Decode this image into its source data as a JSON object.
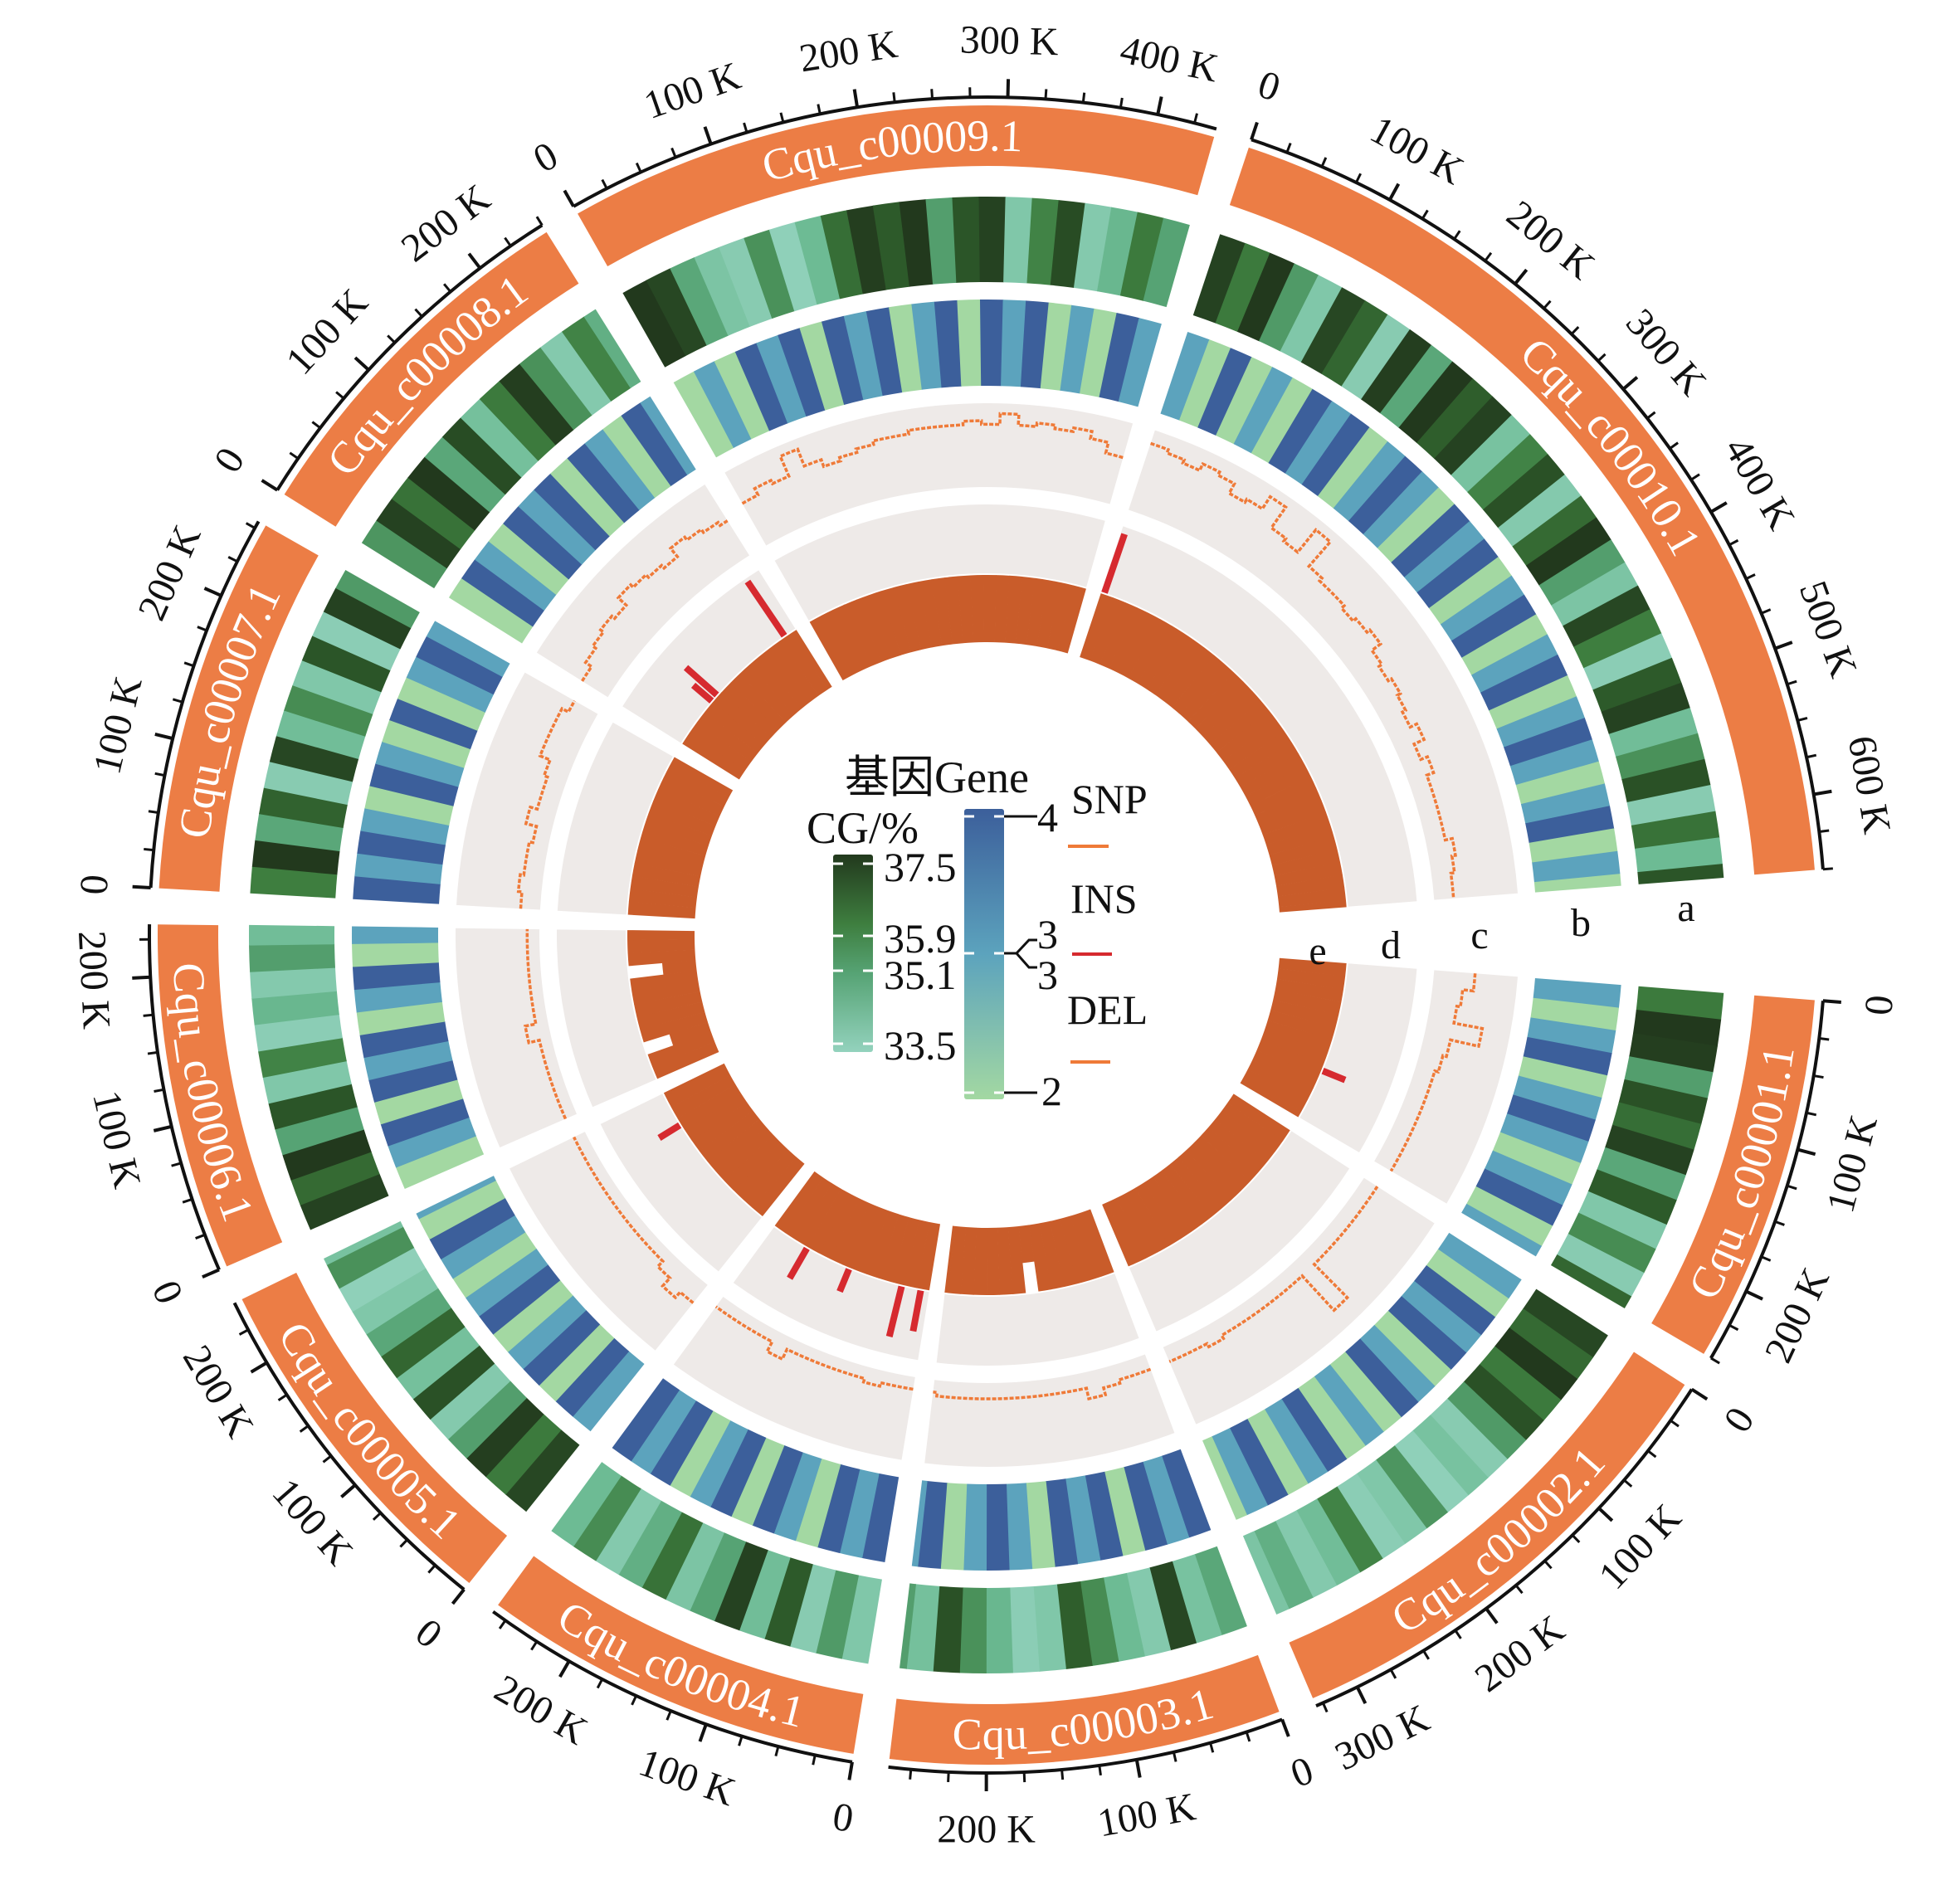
{
  "chart_data": {
    "type": "circos",
    "title": "",
    "units": "K",
    "bin_size_k": 20,
    "track_labels": [
      "a",
      "b",
      "c",
      "d",
      "e"
    ],
    "tracks": {
      "a": "GC content (CG/%) heatmap",
      "b": "Gene density heatmap",
      "c": "SNP",
      "d": "INS",
      "e": "DEL"
    },
    "contigs": [
      {
        "name": "Cqu_c00001.1",
        "length_k": 250,
        "tick_labels": [
          "0",
          "100 K",
          "200 K"
        ],
        "gc": [
          36.0,
          37.5,
          37.4,
          35.2,
          37.0,
          36.3,
          37.3,
          35.0,
          36.8,
          34.0,
          35.6,
          33.8,
          36.5
        ],
        "gene": [
          3,
          2,
          3,
          4,
          2,
          3,
          4,
          3,
          2,
          3,
          4,
          2,
          3
        ],
        "snp": [
          0.5,
          0.35,
          0.3,
          0.7,
          0.3,
          0.25,
          0.2,
          0.2,
          0.2,
          0.2,
          0.2,
          0.2,
          0.2
        ],
        "ins": [
          [
            170,
            0.35
          ]
        ],
        "del": [
          1,
          1,
          1,
          1,
          1,
          1,
          1,
          1,
          1,
          1,
          1,
          1,
          1
        ]
      },
      {
        "name": "Cqu_c00002.1",
        "length_k": 330,
        "tick_labels": [
          "0",
          "100 K",
          "200 K",
          "300 K"
        ],
        "gc": [
          37.2,
          36.4,
          37.5,
          36.0,
          37.0,
          35.3,
          33.8,
          34.2,
          33.6,
          35.4,
          34.0,
          33.7,
          35.8,
          34.4,
          33.9,
          34.8,
          34.1
        ],
        "gene": [
          3,
          2,
          4,
          3,
          4,
          2,
          3,
          4,
          2,
          3,
          2,
          4,
          3,
          2,
          4,
          3,
          2
        ],
        "snp": [
          0.15,
          0.15,
          0.15,
          0.15,
          0.15,
          0.15,
          0.8,
          0.15,
          0.15,
          0.15,
          0.15,
          0.15,
          0.15,
          0.2,
          0.15,
          0.15,
          0.15
        ],
        "ins": [],
        "del": [
          1,
          1,
          1,
          1,
          1,
          1,
          1,
          1,
          1,
          1,
          1,
          1,
          1,
          1,
          1,
          1,
          1
        ]
      },
      {
        "name": "Cqu_c00003.1",
        "length_k": 265,
        "tick_labels": [
          "0",
          "100 K",
          "200 K"
        ],
        "gc": [
          35.0,
          34.2,
          37.2,
          33.9,
          34.5,
          35.6,
          36.7,
          34.0,
          33.7,
          34.6,
          35.5,
          37.0,
          34.3,
          35.2
        ],
        "gene": [
          4,
          3,
          4,
          2,
          4,
          3,
          4,
          2,
          3,
          4,
          3,
          2,
          4,
          3
        ],
        "snp": [
          0.15,
          0.15,
          0.2,
          0.3,
          0.15,
          0.15,
          0.15,
          0.15,
          0.15,
          0.15,
          0.15,
          0.15,
          0.15,
          0.1
        ],
        "ins": [],
        "del": [
          1,
          1,
          1,
          1,
          1,
          1,
          0.55,
          1,
          1,
          1,
          1,
          1,
          1,
          1
        ]
      },
      {
        "name": "Cqu_c00004.1",
        "length_k": 260,
        "tick_labels": [
          "0",
          "100 K",
          "200 K"
        ],
        "gc": [
          34.0,
          35.3,
          33.8,
          36.8,
          34.4,
          37.3,
          35.1,
          34.1,
          36.2,
          34.8,
          33.9,
          35.6,
          34.5
        ],
        "gene": [
          4,
          3,
          4,
          2,
          3,
          4,
          2,
          4,
          3,
          2,
          4,
          3,
          4
        ],
        "snp": [
          0.1,
          0.1,
          0.15,
          0.1,
          0.1,
          0.1,
          0.1,
          0.1,
          0.25,
          0.1,
          0.1,
          0.1,
          0.1
        ],
        "ins": [
          [
            13,
            0.6
          ],
          [
            43,
            0.75
          ],
          [
            128,
            0.35
          ],
          [
            200,
            0.5
          ]
        ],
        "del": [
          1,
          1,
          1,
          1,
          1,
          1,
          1,
          1,
          1,
          1,
          1,
          1,
          1
        ]
      },
      {
        "name": "Cqu_c00005.1",
        "length_k": 245,
        "tick_labels": [
          "0",
          "100 K",
          "200 K"
        ],
        "gc": [
          37.2,
          36.0,
          37.4,
          35.2,
          33.9,
          37.0,
          34.3,
          36.5,
          35.0,
          34.0,
          33.6,
          35.5,
          34.2
        ],
        "gene": [
          3,
          4,
          2,
          4,
          3,
          2,
          4,
          3,
          2,
          3,
          4,
          2,
          3
        ],
        "snp": [
          0.25,
          0.35,
          0.2,
          0.1,
          0.1,
          0.1,
          0.1,
          0.1,
          0.1,
          0.1,
          0.1,
          0.1,
          0.1
        ],
        "ins": [
          [
            190,
            0.35
          ]
        ],
        "del": [
          1,
          1,
          1,
          1,
          1,
          1,
          1,
          1,
          1,
          1,
          1,
          1,
          1
        ]
      },
      {
        "name": "Cqu_c00006.1",
        "length_k": 235,
        "tick_labels": [
          "0",
          "100 K",
          "200 K"
        ],
        "gc": [
          37.3,
          36.4,
          37.5,
          35.1,
          36.9,
          34.0,
          35.8,
          33.7,
          34.6,
          33.9,
          35.2,
          34.4
        ],
        "gene": [
          2,
          3,
          4,
          2,
          4,
          3,
          4,
          2,
          3,
          4,
          2,
          3
        ],
        "snp": [
          0.1,
          0.1,
          0.1,
          0.1,
          0.1,
          0.25,
          0.1,
          0.1,
          0.1,
          0.1,
          0.1,
          0.1
        ],
        "ins": [],
        "del": [
          1,
          1,
          0.6,
          1,
          1,
          1,
          1,
          1,
          0.5,
          1,
          1,
          1
        ]
      },
      {
        "name": "Cqu_c00007.1",
        "length_k": 255,
        "tick_labels": [
          "0",
          "100 K",
          "200 K"
        ],
        "gc": [
          35.9,
          37.5,
          35.0,
          36.6,
          33.8,
          37.2,
          34.4,
          35.6,
          34.0,
          36.9,
          33.7,
          37.3,
          35.3
        ],
        "gene": [
          4,
          3,
          4,
          3,
          2,
          4,
          3,
          2,
          4,
          2,
          3,
          4,
          3
        ],
        "snp": [
          0.2,
          0.25,
          0.2,
          0.2,
          0.15,
          0.3,
          0.2,
          0.2,
          0.25,
          0.4,
          0.4,
          0.4,
          0.3
        ],
        "ins": [],
        "del": [
          1,
          1,
          1,
          1,
          1,
          1,
          1,
          1,
          1,
          1,
          1,
          1,
          1
        ]
      },
      {
        "name": "Cqu_c00008.1",
        "length_k": 250,
        "tick_labels": [
          "0",
          "100 K",
          "200 K"
        ],
        "gc": [
          35.4,
          37.3,
          36.2,
          37.5,
          35.0,
          37.1,
          34.3,
          36.0,
          37.4,
          35.5,
          33.9,
          35.8,
          34.8
        ],
        "gene": [
          2,
          4,
          3,
          2,
          4,
          3,
          4,
          2,
          4,
          3,
          2,
          4,
          3
        ],
        "snp": [
          0.35,
          0.45,
          0.5,
          0.55,
          0.5,
          0.65,
          0.6,
          0.55,
          0.5,
          0.65,
          0.6,
          0.55,
          0.5
        ],
        "ins": [
          [
            80,
            0.35
          ],
          [
            92,
            0.6
          ],
          [
            230,
            0.95
          ]
        ],
        "del": [
          1,
          1,
          1,
          1,
          1,
          1,
          1,
          1,
          1,
          1,
          1,
          1,
          1
        ]
      },
      {
        "name": "Cqu_c00009.1",
        "length_k": 440,
        "tick_labels": [
          "0",
          "100 K",
          "200 K",
          "300 K",
          "400 K"
        ],
        "gc": [
          37.5,
          37.2,
          35.0,
          34.1,
          33.8,
          35.5,
          33.6,
          34.5,
          36.3,
          37.4,
          36.8,
          37.5,
          35.2,
          36.9,
          37.3,
          34.0,
          35.8,
          37.1,
          33.9,
          34.6,
          36.0,
          35.1
        ],
        "gene": [
          2,
          3,
          2,
          4,
          3,
          4,
          2,
          4,
          3,
          4,
          2,
          3,
          4,
          2,
          4,
          3,
          4,
          2,
          3,
          2,
          4,
          3
        ],
        "snp": [
          0.6,
          0.7,
          0.65,
          0.95,
          0.7,
          0.6,
          0.65,
          0.7,
          0.75,
          0.75,
          0.8,
          0.8,
          0.8,
          0.85,
          0.8,
          0.95,
          0.8,
          0.85,
          0.8,
          0.85,
          0.75,
          0.6
        ],
        "ins": [],
        "del": [
          1,
          1,
          1,
          1,
          1,
          1,
          1,
          1,
          1,
          1,
          1,
          1,
          1,
          1,
          1,
          1,
          1,
          1,
          1,
          1,
          1,
          1
        ]
      },
      {
        "name": "Cqu_c00010.1",
        "length_k": 650,
        "tick_labels": [
          "0",
          "100 K",
          "200 K",
          "300 K",
          "400 K",
          "500 K",
          "600 K"
        ],
        "gc": [
          37.3,
          36.0,
          37.5,
          35.3,
          34.0,
          37.2,
          36.5,
          33.8,
          37.4,
          35.0,
          37.5,
          36.7,
          37.3,
          34.2,
          35.8,
          37.0,
          33.9,
          36.4,
          37.5,
          35.2,
          34.1,
          37.2,
          35.9,
          33.7,
          36.8,
          37.3,
          34.4,
          35.5,
          37.0,
          33.8,
          36.2,
          34.5,
          36.9
        ],
        "gene": [
          3,
          2,
          4,
          2,
          3,
          2,
          4,
          3,
          4,
          2,
          3,
          4,
          3,
          2,
          4,
          3,
          4,
          2,
          3,
          4,
          2,
          3,
          4,
          2,
          3,
          4,
          3,
          2,
          3,
          4,
          2,
          3,
          2
        ],
        "snp": [
          0.9,
          0.85,
          0.8,
          0.9,
          0.85,
          0.7,
          0.75,
          0.95,
          0.6,
          0.55,
          0.95,
          0.5,
          0.45,
          0.45,
          0.4,
          0.45,
          0.5,
          0.35,
          0.3,
          0.35,
          0.3,
          0.25,
          0.35,
          0.2,
          0.3,
          0.2,
          0.2,
          0.2,
          0.2,
          0.3,
          0.25,
          0.2,
          0.2
        ],
        "ins": [
          [
            5,
            0.9
          ]
        ],
        "del": [
          1,
          1,
          1,
          1,
          1,
          1,
          1,
          1,
          1,
          1,
          1,
          1,
          1,
          1,
          1,
          1,
          1,
          1,
          1,
          1,
          1,
          1,
          1,
          1,
          1,
          1,
          1,
          1,
          1,
          1,
          1,
          1,
          1
        ]
      }
    ],
    "legend": {
      "gene_title": "基因Gene",
      "gc_title": "CG/%",
      "gc_ticks": [
        "37.5",
        "35.9",
        "35.1",
        "33.5"
      ],
      "gc_range": [
        33.5,
        37.5
      ],
      "gene_ticks": [
        "4",
        "3",
        "3",
        "2"
      ],
      "gene_range": [
        2,
        4
      ],
      "snp_label": "SNP",
      "ins_label": "INS",
      "del_label": "DEL"
    },
    "colors": {
      "ideogram": "#ec7d45",
      "track_bg": "#eeeae8",
      "snp": "#ef7a38",
      "ins": "#d62a2f",
      "del": "#c95c2a",
      "gc_low": "#93d2bd",
      "gc_high": "#22391d",
      "gene_low": "#a3d8a2",
      "gene_mid": "#5ca3bd",
      "gene_high": "#3c5f9b"
    }
  }
}
